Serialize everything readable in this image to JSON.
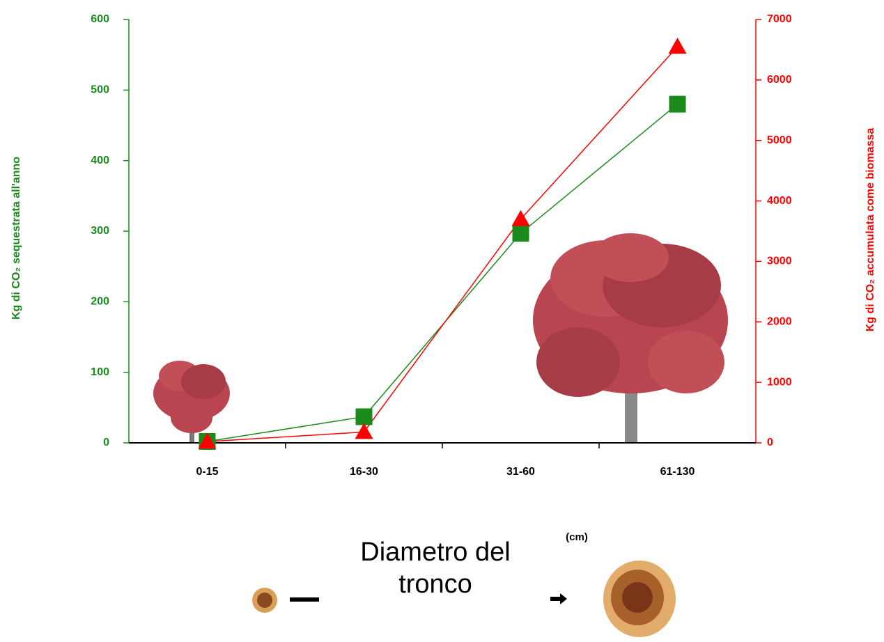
{
  "chart_data": {
    "type": "line",
    "categories": [
      "0-15",
      "16-30",
      "31-60",
      "61-130"
    ],
    "series": [
      {
        "color": "#1a8a1a",
        "marker": "square",
        "values": [
          2,
          37,
          297,
          480
        ]
      },
      {
        "color": "#ff0000",
        "marker": "triangle",
        "axis": "y2",
        "values": [
          20,
          180,
          3700,
          6550
        ]
      }
    ],
    "ylim": [
      0,
      600
    ],
    "yticks": [
      0,
      100,
      200,
      300,
      400,
      500,
      600
    ],
    "y2lim": [
      0,
      7000
    ],
    "y2ticks": [
      0,
      1000,
      2000,
      3000,
      4000,
      5000,
      6000,
      7000
    ],
    "ylabel": "Kg di CO₂ sequestrata all'anno",
    "y2label": "Kg di CO₂ accumulata come biomassa",
    "xlabel": "Diametro del tronco",
    "xunit": "(cm)"
  }
}
